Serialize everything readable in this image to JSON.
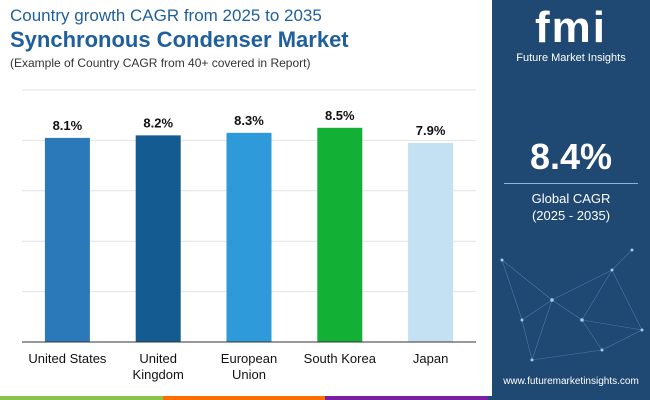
{
  "header": {
    "title_line1": "Country growth CAGR from 2025 to 2035",
    "title_line2": "Synchronous Condenser Market",
    "subtitle": "(Example of Country CAGR from 40+ covered in Report)"
  },
  "side": {
    "brand": "fmi",
    "brand_sub": "Future Market Insights",
    "global_value": "8.4%",
    "global_label": "Global CAGR",
    "period": "(2025 - 2035)",
    "website": "www.futuremarketinsights.com"
  },
  "colors": {
    "panel": "#1f4873",
    "strip": [
      "#8bc34a",
      "#ff6f00",
      "#7b1fa2",
      "#1f4873"
    ]
  },
  "chart_data": {
    "type": "bar",
    "categories": [
      [
        "United States"
      ],
      [
        "United",
        "Kingdom"
      ],
      [
        "European",
        "Union"
      ],
      [
        "South Korea"
      ],
      [
        "Japan"
      ]
    ],
    "values": [
      8.1,
      8.2,
      8.3,
      8.5,
      7.9
    ],
    "value_labels": [
      "8.1%",
      "8.2%",
      "8.3%",
      "8.5%",
      "7.9%"
    ],
    "colors": [
      "#2b79b9",
      "#145b91",
      "#2e9ad9",
      "#12b136",
      "#c3e1f3"
    ],
    "ylim": [
      0,
      10
    ],
    "grid": true,
    "xlabel": "",
    "ylabel": ""
  }
}
